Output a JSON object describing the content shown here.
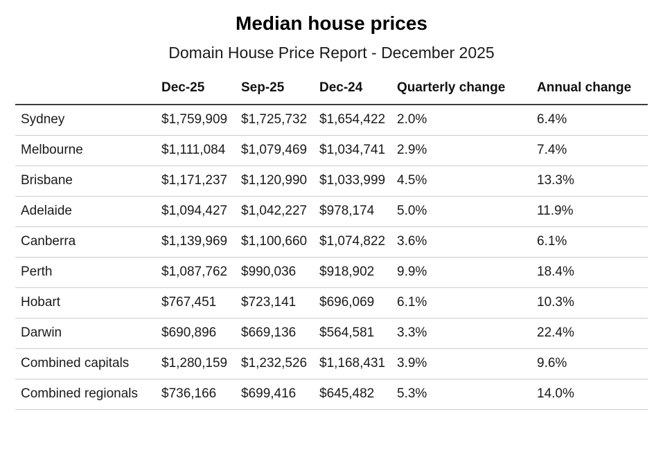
{
  "header": {
    "title": "Median house prices",
    "subtitle": "Domain House Price Report - December 2025"
  },
  "chart_data": {
    "type": "table",
    "title": "Median house prices",
    "subtitle": "Domain House Price Report - December 2025",
    "columns": [
      "",
      "Dec-25",
      "Sep-25",
      "Dec-24",
      "Quarterly change",
      "Annual change"
    ],
    "rows": [
      [
        "Sydney",
        "$1,759,909",
        "$1,725,732",
        "$1,654,422",
        "2.0%",
        "6.4%"
      ],
      [
        "Melbourne",
        "$1,111,084",
        "$1,079,469",
        "$1,034,741",
        "2.9%",
        "7.4%"
      ],
      [
        "Brisbane",
        "$1,171,237",
        "$1,120,990",
        "$1,033,999",
        "4.5%",
        "13.3%"
      ],
      [
        "Adelaide",
        "$1,094,427",
        "$1,042,227",
        "$978,174",
        "5.0%",
        "11.9%"
      ],
      [
        "Canberra",
        "$1,139,969",
        "$1,100,660",
        "$1,074,822",
        "3.6%",
        "6.1%"
      ],
      [
        "Perth",
        "$1,087,762",
        "$990,036",
        "$918,902",
        "9.9%",
        "18.4%"
      ],
      [
        "Hobart",
        "$767,451",
        "$723,141",
        "$696,069",
        "6.1%",
        "10.3%"
      ],
      [
        "Darwin",
        "$690,896",
        "$669,136",
        "$564,581",
        "3.3%",
        "22.4%"
      ],
      [
        "Combined capitals",
        "$1,280,159",
        "$1,232,526",
        "$1,168,431",
        "3.9%",
        "9.6%"
      ],
      [
        "Combined regionals",
        "$736,166",
        "$699,416",
        "$645,482",
        "5.3%",
        "14.0%"
      ]
    ],
    "layout": {
      "grid": "horizontal-rules-only",
      "header_rule": true,
      "alignment": "left"
    }
  }
}
